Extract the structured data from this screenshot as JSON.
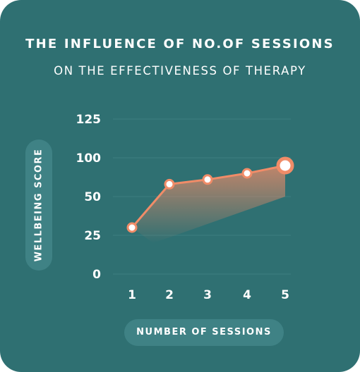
{
  "title": "THE INFLUENCE OF NO.OF SESSIONS",
  "subtitle": "ON THE EFFECTIVENESS OF THERAPY",
  "colors": {
    "background": "#2f7072",
    "pill": "#3f8285",
    "line": "#f08c68",
    "marker_fill": "#ffffff",
    "gridline": "#3c7e80"
  },
  "chart_data": {
    "type": "line",
    "title": "THE INFLUENCE OF NO.OF SESSIONS",
    "subtitle": "ON THE EFFECTIVENESS OF THERAPY",
    "xlabel": "NUMBER OF SESSIONS",
    "ylabel": "WELLBEING SCORE",
    "x": [
      1,
      2,
      3,
      4,
      5
    ],
    "x_tick_labels": [
      "1",
      "2",
      "3",
      "4",
      "5"
    ],
    "y_ticks": [
      0,
      25,
      50,
      100,
      125
    ],
    "y_tick_labels": [
      "0",
      "25",
      "50",
      "100",
      "125"
    ],
    "ylim": [
      0,
      125
    ],
    "series": [
      {
        "values": [
          30,
          66,
          72,
          80,
          90
        ]
      }
    ],
    "grid": true,
    "area_fill": true,
    "highlight_last_point": true
  }
}
